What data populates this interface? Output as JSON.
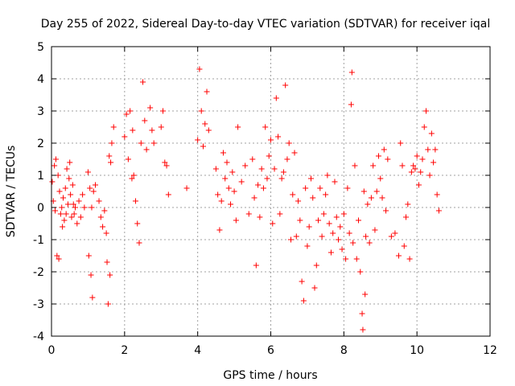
{
  "chart_data": {
    "type": "scatter",
    "title": "Day 255 of 2022, Sidereal Day-to-day VTEC variation (SDTVAR) for receiver iqal",
    "xlabel": "GPS time / hours",
    "ylabel": "SDTVAR / TECUs",
    "xlim": [
      0,
      12
    ],
    "ylim": [
      -4,
      5
    ],
    "xticks": [
      0,
      2,
      4,
      6,
      8,
      10,
      12
    ],
    "yticks": [
      -4,
      -3,
      -2,
      -1,
      0,
      1,
      2,
      3,
      4,
      5
    ],
    "grid": true,
    "marker": "+",
    "marker_color": "#ff0000",
    "series": [
      {
        "name": "SDTVAR",
        "x": [
          0.02,
          0.05,
          0.08,
          0.1,
          0.12,
          0.15,
          0.18,
          0.2,
          0.22,
          0.25,
          0.28,
          0.3,
          0.32,
          0.35,
          0.38,
          0.4,
          0.42,
          0.45,
          0.48,
          0.5,
          0.52,
          0.55,
          0.58,
          0.6,
          0.62,
          0.65,
          0.7,
          0.75,
          0.8,
          0.85,
          0.9,
          1.0,
          1.02,
          1.05,
          1.08,
          1.1,
          1.12,
          1.15,
          1.2,
          1.3,
          1.35,
          1.4,
          1.45,
          1.5,
          1.52,
          1.55,
          1.58,
          1.6,
          1.62,
          1.65,
          1.7,
          2.0,
          2.05,
          2.1,
          2.15,
          2.2,
          2.22,
          2.25,
          2.3,
          2.35,
          2.4,
          2.45,
          2.5,
          2.55,
          2.6,
          2.7,
          2.75,
          2.8,
          3.0,
          3.05,
          3.1,
          3.15,
          3.2,
          3.7,
          4.0,
          4.05,
          4.1,
          4.15,
          4.2,
          4.25,
          4.3,
          4.5,
          4.55,
          4.6,
          4.65,
          4.7,
          4.75,
          4.8,
          4.85,
          4.9,
          4.95,
          5.0,
          5.05,
          5.1,
          5.2,
          5.3,
          5.4,
          5.5,
          5.55,
          5.6,
          5.65,
          5.7,
          5.75,
          5.8,
          5.85,
          5.9,
          5.95,
          6.0,
          6.05,
          6.1,
          6.15,
          6.2,
          6.25,
          6.3,
          6.35,
          6.4,
          6.45,
          6.5,
          6.55,
          6.6,
          6.65,
          6.7,
          6.75,
          6.8,
          6.85,
          6.9,
          6.95,
          7.0,
          7.05,
          7.1,
          7.15,
          7.2,
          7.25,
          7.3,
          7.35,
          7.4,
          7.45,
          7.5,
          7.55,
          7.6,
          7.65,
          7.7,
          7.75,
          7.8,
          7.85,
          7.9,
          7.95,
          8.0,
          8.05,
          8.1,
          8.15,
          8.2,
          8.22,
          8.25,
          8.3,
          8.35,
          8.4,
          8.45,
          8.5,
          8.52,
          8.55,
          8.58,
          8.6,
          8.65,
          8.7,
          8.75,
          8.8,
          8.85,
          8.9,
          8.95,
          9.0,
          9.05,
          9.1,
          9.15,
          9.2,
          9.3,
          9.4,
          9.5,
          9.55,
          9.6,
          9.65,
          9.7,
          9.75,
          9.8,
          9.85,
          9.9,
          9.95,
          10.0,
          10.05,
          10.1,
          10.15,
          10.2,
          10.25,
          10.3,
          10.35,
          10.4,
          10.45,
          10.5,
          10.55,
          10.6
        ],
        "y": [
          0.8,
          0.2,
          1.3,
          -0.1,
          1.5,
          -1.5,
          1.0,
          -1.6,
          0.5,
          -0.2,
          0.0,
          -0.6,
          0.3,
          -0.4,
          0.6,
          -0.2,
          1.2,
          0.1,
          0.9,
          1.4,
          0.4,
          -0.3,
          0.7,
          0.1,
          -0.2,
          0.0,
          -0.5,
          0.2,
          -0.3,
          0.4,
          0.0,
          1.1,
          -1.5,
          0.6,
          -2.1,
          0.0,
          -2.8,
          0.5,
          0.7,
          0.2,
          -0.3,
          -0.6,
          -0.1,
          -0.8,
          -1.7,
          -3.0,
          1.6,
          -2.1,
          1.4,
          2.0,
          2.5,
          2.2,
          2.9,
          1.5,
          3.0,
          0.9,
          2.4,
          1.0,
          0.2,
          -0.5,
          -1.1,
          2.0,
          3.9,
          2.7,
          1.8,
          3.1,
          2.4,
          2.0,
          2.5,
          3.0,
          1.4,
          1.3,
          0.4,
          0.6,
          2.1,
          4.3,
          3.0,
          1.9,
          2.6,
          3.6,
          2.4,
          1.2,
          0.4,
          -0.7,
          0.2,
          1.7,
          0.9,
          1.4,
          0.6,
          0.1,
          1.1,
          0.5,
          -0.4,
          2.5,
          0.8,
          1.3,
          -0.2,
          1.5,
          0.3,
          -1.8,
          0.7,
          -0.3,
          1.2,
          0.6,
          2.5,
          0.9,
          1.6,
          2.1,
          -0.5,
          1.2,
          3.4,
          2.2,
          -0.2,
          0.9,
          1.1,
          3.8,
          1.5,
          2.0,
          -1.0,
          0.4,
          1.7,
          -0.9,
          0.2,
          -0.4,
          -2.3,
          -2.9,
          0.6,
          -1.2,
          -0.6,
          0.9,
          0.3,
          -2.5,
          -1.8,
          -0.4,
          0.6,
          -0.9,
          -0.2,
          0.4,
          1.0,
          -0.5,
          -1.4,
          -0.8,
          0.8,
          -0.3,
          -1.0,
          -0.6,
          -1.3,
          -0.2,
          -1.6,
          0.6,
          -0.8,
          3.2,
          4.2,
          -1.1,
          1.3,
          -1.6,
          -0.4,
          -2.0,
          -3.3,
          -3.8,
          0.5,
          -2.7,
          -0.9,
          0.1,
          -1.1,
          0.3,
          1.3,
          -0.7,
          0.5,
          1.6,
          0.9,
          0.3,
          1.8,
          -0.1,
          1.5,
          -0.9,
          -0.8,
          -1.5,
          2.0,
          1.3,
          -1.2,
          -0.3,
          0.1,
          -1.6,
          1.1,
          1.3,
          1.2,
          1.6,
          0.7,
          1.1,
          1.5,
          2.5,
          3.0,
          1.8,
          1.0,
          2.3,
          1.4,
          1.8,
          0.4,
          -0.1
        ]
      }
    ]
  }
}
